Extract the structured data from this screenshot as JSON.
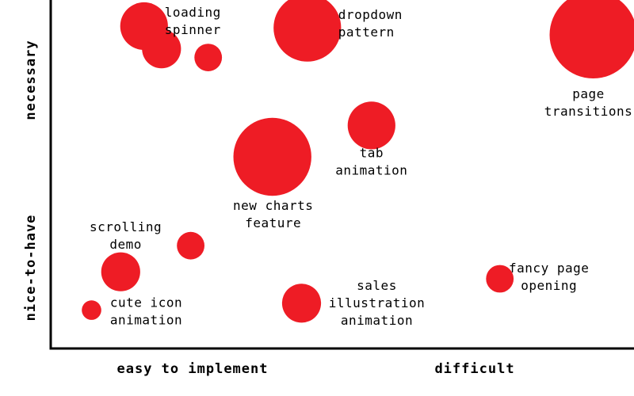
{
  "chart_data": {
    "type": "scatter",
    "title": "",
    "xlabel": "",
    "ylabel": "",
    "x_axis_labels": {
      "low": "easy to implement",
      "high": "difficult"
    },
    "y_axis_labels": {
      "low": "nice-to-have",
      "high": "necessary"
    },
    "xlim": [
      0,
      10
    ],
    "ylim": [
      0,
      10
    ],
    "grid": false,
    "legend": "none",
    "marker_color": "#ee1c25",
    "points": [
      {
        "label": [
          "loading",
          "spinner"
        ],
        "x": 1.6,
        "y": 9.25,
        "size": 3
      },
      {
        "label": [],
        "x": 1.9,
        "y": 8.6,
        "size": 2
      },
      {
        "label": [],
        "x": 2.7,
        "y": 8.35,
        "size": 1
      },
      {
        "label": [
          "dropdown",
          "pattern"
        ],
        "x": 4.4,
        "y": 9.2,
        "size": 6
      },
      {
        "label": [
          "page",
          "transitions"
        ],
        "x": 9.3,
        "y": 9.0,
        "size": 10
      },
      {
        "label": [
          "tab",
          "animation"
        ],
        "x": 5.5,
        "y": 6.4,
        "size": 3
      },
      {
        "label": [
          "new charts",
          "feature"
        ],
        "x": 3.8,
        "y": 5.5,
        "size": 8
      },
      {
        "label": [
          "scrolling",
          "demo"
        ],
        "x": 2.4,
        "y": 2.95,
        "size": 1
      },
      {
        "label": [],
        "x": 1.2,
        "y": 2.2,
        "size": 2
      },
      {
        "label": [
          "cute icon",
          "animation"
        ],
        "x": 0.7,
        "y": 1.1,
        "size": 0.5
      },
      {
        "label": [
          "sales",
          "illustration",
          "animation"
        ],
        "x": 4.3,
        "y": 1.3,
        "size": 2
      },
      {
        "label": [
          "fancy page",
          "opening"
        ],
        "x": 7.7,
        "y": 2.0,
        "size": 1
      }
    ]
  }
}
